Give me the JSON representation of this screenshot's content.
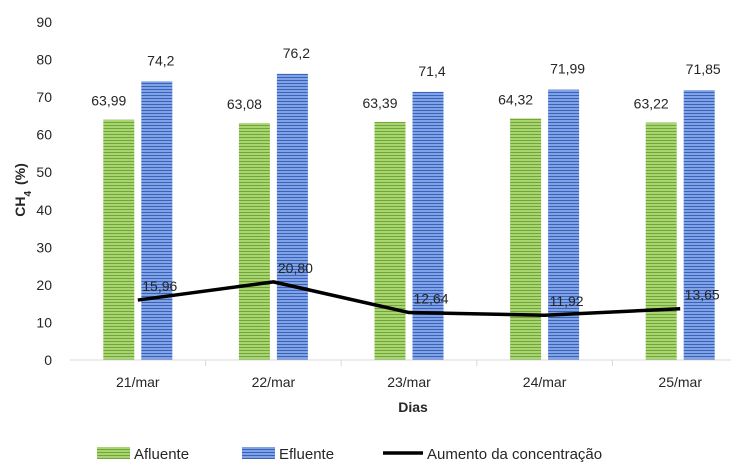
{
  "chart_data": {
    "type": "bar",
    "categories": [
      "21/mar",
      "22/mar",
      "23/mar",
      "24/mar",
      "25/mar"
    ],
    "series": [
      {
        "name": "Afluente",
        "kind": "bar",
        "color": "#8cc152",
        "values": [
          63.99,
          63.08,
          63.39,
          64.32,
          63.22
        ],
        "labels": [
          "63,99",
          "63,08",
          "63,39",
          "64,32",
          "63,22"
        ]
      },
      {
        "name": "Efluente",
        "kind": "bar",
        "color": "#4a7ad0",
        "values": [
          74.2,
          76.2,
          71.4,
          71.99,
          71.85
        ],
        "labels": [
          "74,2",
          "76,2",
          "71,4",
          "71,99",
          "71,85"
        ]
      },
      {
        "name": "Aumento da concentração",
        "kind": "line",
        "color": "#000000",
        "values": [
          15.96,
          20.8,
          12.64,
          11.92,
          13.65
        ],
        "labels": [
          "15,96",
          "20,80",
          "12,64",
          "11,92",
          "13,65"
        ]
      }
    ],
    "ylabel_main": "CH",
    "ylabel_sub": "4",
    "ylabel_unit": "(%)",
    "xlabel": "Dias",
    "ylim": [
      0,
      90
    ],
    "yticks": [
      0,
      10,
      20,
      30,
      40,
      50,
      60,
      70,
      80,
      90
    ],
    "grid": false,
    "legend_position": "bottom"
  }
}
